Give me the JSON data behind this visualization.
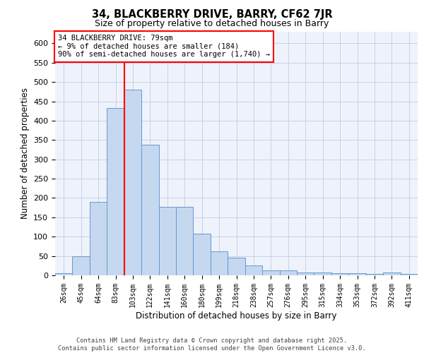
{
  "title1": "34, BLACKBERRY DRIVE, BARRY, CF62 7JR",
  "title2": "Size of property relative to detached houses in Barry",
  "xlabel": "Distribution of detached houses by size in Barry",
  "ylabel": "Number of detached properties",
  "bar_labels": [
    "26sqm",
    "45sqm",
    "64sqm",
    "83sqm",
    "103sqm",
    "122sqm",
    "141sqm",
    "160sqm",
    "180sqm",
    "199sqm",
    "218sqm",
    "238sqm",
    "257sqm",
    "276sqm",
    "295sqm",
    "315sqm",
    "334sqm",
    "353sqm",
    "372sqm",
    "392sqm",
    "411sqm"
  ],
  "bar_values": [
    5,
    50,
    190,
    433,
    480,
    338,
    178,
    178,
    108,
    62,
    45,
    25,
    12,
    12,
    8,
    8,
    5,
    5,
    3,
    8,
    3
  ],
  "bar_color": "#c5d8f0",
  "bar_edge_color": "#6699cc",
  "vline_color": "red",
  "annotation_text": "34 BLACKBERRY DRIVE: 79sqm\n← 9% of detached houses are smaller (184)\n90% of semi-detached houses are larger (1,740) →",
  "annotation_box_color": "white",
  "annotation_box_edge_color": "red",
  "ylim": [
    0,
    630
  ],
  "yticks": [
    0,
    50,
    100,
    150,
    200,
    250,
    300,
    350,
    400,
    450,
    500,
    550,
    600
  ],
  "footer_text": "Contains HM Land Registry data © Crown copyright and database right 2025.\nContains public sector information licensed under the Open Government Licence v3.0.",
  "bg_color": "#eef2fb",
  "grid_color": "#c8d0e8"
}
